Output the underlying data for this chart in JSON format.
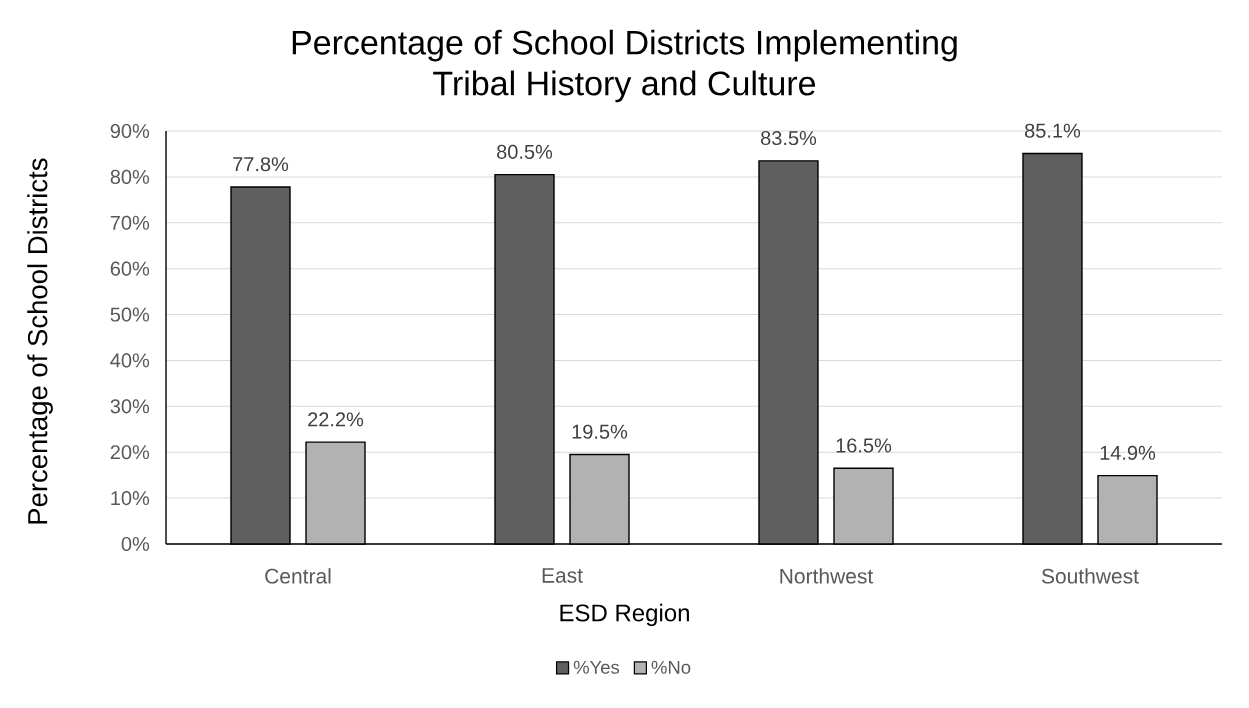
{
  "chart_data": {
    "type": "bar",
    "title": "Percentage of School Districts Implementing Tribal History and Culture",
    "xlabel": "ESD Region",
    "ylabel": "Percentage of School Districts",
    "categories": [
      "Central",
      "East",
      "Northwest",
      "Southwest"
    ],
    "series": [
      {
        "name": "%Yes",
        "color": "#5f5f5f",
        "values": [
          77.8,
          80.5,
          83.5,
          85.1
        ],
        "value_labels": [
          "77.8%",
          "80.5%",
          "83.5%",
          "85.1%"
        ]
      },
      {
        "name": "%No",
        "color": "#b2b2b2",
        "values": [
          22.2,
          19.5,
          16.5,
          14.9
        ],
        "value_labels": [
          "22.2%",
          "19.5%",
          "16.5%",
          "14.9%"
        ]
      }
    ],
    "ylim": [
      0,
      90
    ],
    "yticks": [
      {
        "value": 0,
        "label": "0%"
      },
      {
        "value": 10,
        "label": "10%"
      },
      {
        "value": 20,
        "label": "20%"
      },
      {
        "value": 30,
        "label": "30%"
      },
      {
        "value": 40,
        "label": "40%"
      },
      {
        "value": 50,
        "label": "50%"
      },
      {
        "value": 60,
        "label": "60%"
      },
      {
        "value": 70,
        "label": "70%"
      },
      {
        "value": 80,
        "label": "80%"
      },
      {
        "value": 90,
        "label": "90%"
      }
    ],
    "grid": "y",
    "legend": "bottom"
  }
}
